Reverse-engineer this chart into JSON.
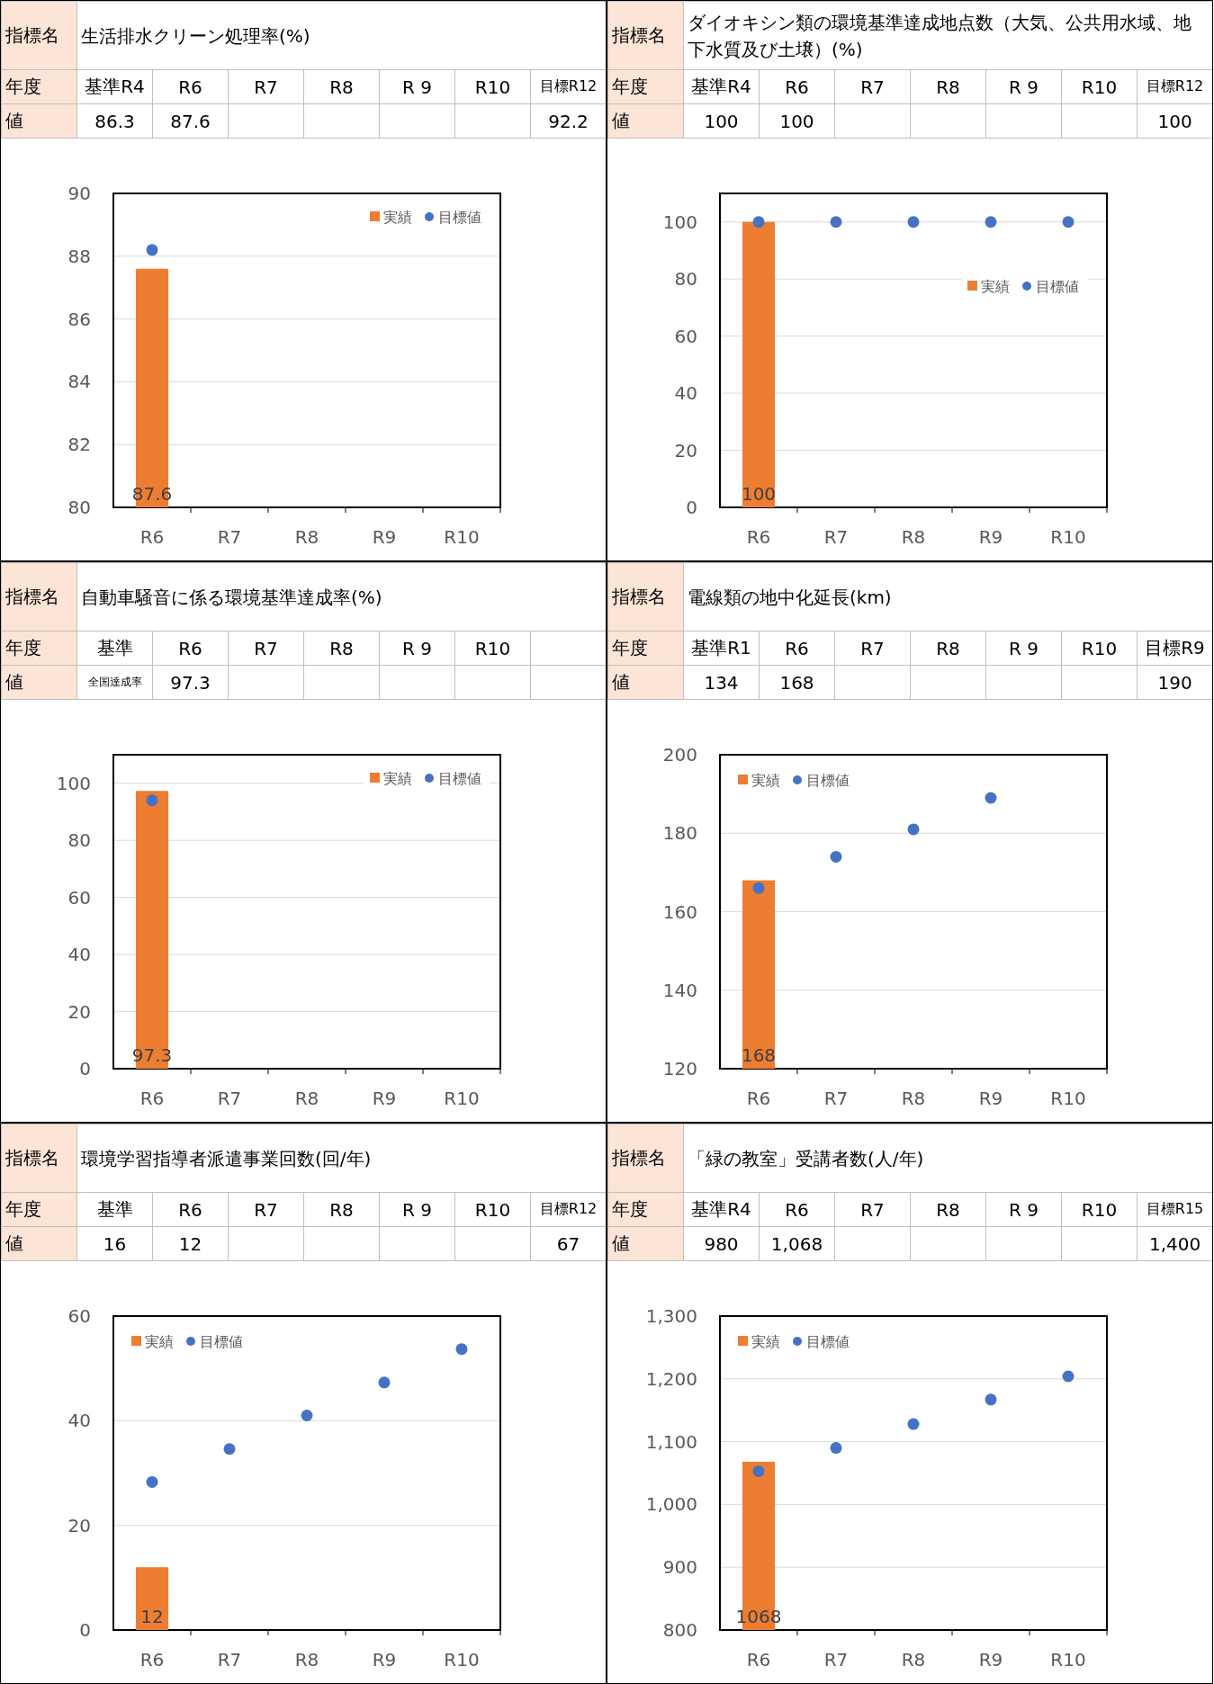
{
  "chart_data": [
    {
      "type": "bar",
      "title": "生活排水クリーン処理率(%)",
      "annotations": [
        "指標名",
        "年度",
        "基準R4",
        "R6",
        "R7",
        "R8",
        "R 9",
        "R10",
        "目標R12",
        "値",
        "86.3",
        "87.6",
        null,
        null,
        null,
        null,
        "92.2"
      ],
      "categories": [
        "R6",
        "R7",
        "R8",
        "R9",
        "R10"
      ],
      "ylim": [
        80,
        90
      ],
      "yticks": [
        80,
        82,
        84,
        86,
        88,
        90
      ],
      "grid": "y",
      "legend": "top right",
      "marker": "circle",
      "series": [
        {
          "name": "実績",
          "type": "bar",
          "color": "#ed7d31",
          "values": [
            87.6,
            null,
            null,
            null,
            null
          ],
          "value_labels": [
            "87.6",
            null,
            null,
            null,
            null
          ]
        },
        {
          "name": "目標値",
          "type": "scatter",
          "color": "#4472c4",
          "values": [
            88.2,
            null,
            null,
            null,
            null
          ]
        }
      ]
    },
    {
      "type": "bar",
      "title": "ダイオキシン類の環境基準達成地点数（大気、公共用水域、地下水質及び土壌）(%)",
      "annotations": [
        "指標名",
        "年度",
        "基準R4",
        "R6",
        "R7",
        "R8",
        "R 9",
        "R10",
        "目標R12",
        "値",
        "100",
        "100",
        null,
        null,
        null,
        null,
        "100"
      ],
      "categories": [
        "R6",
        "R7",
        "R8",
        "R9",
        "R10"
      ],
      "ylim": [
        0,
        110
      ],
      "yticks": [
        0,
        20,
        40,
        60,
        80,
        100
      ],
      "grid": "y",
      "legend": "right",
      "marker": "circle",
      "series": [
        {
          "name": "実績",
          "type": "bar",
          "color": "#ed7d31",
          "values": [
            100,
            null,
            null,
            null,
            null
          ],
          "value_labels": [
            "100",
            null,
            null,
            null,
            null
          ]
        },
        {
          "name": "目標値",
          "type": "scatter",
          "color": "#4472c4",
          "values": [
            100,
            100,
            100,
            100,
            100
          ]
        }
      ]
    },
    {
      "type": "bar",
      "title": "自動車騒音に係る環境基準達成率(%)",
      "annotations": [
        "指標名",
        "年度",
        "基準",
        "R6",
        "R7",
        "R8",
        "R 9",
        "R10",
        null,
        "値",
        "全国達成率",
        "97.3",
        null,
        null,
        null,
        null,
        null
      ],
      "categories": [
        "R6",
        "R7",
        "R8",
        "R9",
        "R10"
      ],
      "ylim": [
        0,
        110
      ],
      "yticks": [
        0,
        20,
        40,
        60,
        80,
        100
      ],
      "grid": "y",
      "legend": "top right",
      "marker": "circle",
      "series": [
        {
          "name": "実績",
          "type": "bar",
          "color": "#ed7d31",
          "values": [
            97.3,
            null,
            null,
            null,
            null
          ],
          "value_labels": [
            "97.3",
            null,
            null,
            null,
            null
          ]
        },
        {
          "name": "目標値",
          "type": "scatter",
          "color": "#4472c4",
          "values": [
            94,
            null,
            null,
            null,
            null
          ]
        }
      ]
    },
    {
      "type": "bar",
      "title": "電線類の地中化延長(km)",
      "annotations": [
        "指標名",
        "年度",
        "基準R1",
        "R6",
        "R7",
        "R8",
        "R 9",
        "R10",
        "目標R9",
        "値",
        "134",
        "168",
        null,
        null,
        null,
        null,
        "190"
      ],
      "categories": [
        "R6",
        "R7",
        "R8",
        "R9",
        "R10"
      ],
      "ylim": [
        120,
        200
      ],
      "yticks": [
        120,
        140,
        160,
        180,
        200
      ],
      "grid": "y",
      "legend": "top left",
      "marker": "circle",
      "series": [
        {
          "name": "実績",
          "type": "bar",
          "color": "#ed7d31",
          "values": [
            168,
            null,
            null,
            null,
            null
          ],
          "value_labels": [
            "168",
            null,
            null,
            null,
            null
          ]
        },
        {
          "name": "目標値",
          "type": "scatter",
          "color": "#4472c4",
          "values": [
            166,
            174,
            181,
            189,
            null
          ]
        }
      ]
    },
    {
      "type": "bar",
      "title": "環境学習指導者派遣事業回数(回/年)",
      "annotations": [
        "指標名",
        "年度",
        "基準",
        "R6",
        "R7",
        "R8",
        "R 9",
        "R10",
        "目標R12",
        "値",
        "16",
        "12",
        null,
        null,
        null,
        null,
        "67"
      ],
      "categories": [
        "R6",
        "R7",
        "R8",
        "R9",
        "R10"
      ],
      "ylim": [
        0,
        60
      ],
      "yticks": [
        0,
        20,
        40,
        60
      ],
      "grid": "y",
      "legend": "top left",
      "marker": "circle",
      "series": [
        {
          "name": "実績",
          "type": "bar",
          "color": "#ed7d31",
          "values": [
            12,
            null,
            null,
            null,
            null
          ],
          "value_labels": [
            "12",
            null,
            null,
            null,
            null
          ]
        },
        {
          "name": "目標値",
          "type": "scatter",
          "color": "#4472c4",
          "values": [
            28.3,
            34.6,
            41,
            47.3,
            53.7
          ]
        }
      ]
    },
    {
      "type": "bar",
      "title": "「緑の教室」受講者数(人/年)",
      "annotations": [
        "指標名",
        "年度",
        "基準R4",
        "R6",
        "R7",
        "R8",
        "R 9",
        "R10",
        "目標R15",
        "値",
        "980",
        "1,068",
        null,
        null,
        null,
        null,
        "1,400"
      ],
      "categories": [
        "R6",
        "R7",
        "R8",
        "R9",
        "R10"
      ],
      "ylim": [
        800,
        1300
      ],
      "yticks": [
        800,
        900,
        {
          "value": 1000,
          "label": "1,000"
        },
        {
          "value": 1100,
          "label": "1,100"
        },
        {
          "value": 1200,
          "label": "1,200"
        },
        {
          "value": 1300,
          "label": "1,300"
        }
      ],
      "grid": "y",
      "legend": "top left",
      "marker": "circle",
      "series": [
        {
          "name": "実績",
          "type": "bar",
          "color": "#ed7d31",
          "values": [
            1068,
            null,
            null,
            null,
            null
          ],
          "value_labels": [
            "1068",
            null,
            null,
            null,
            null
          ]
        },
        {
          "name": "目標値",
          "type": "scatter",
          "color": "#4472c4",
          "values": [
            1053,
            1090,
            1128,
            1167,
            1204
          ]
        }
      ]
    }
  ]
}
